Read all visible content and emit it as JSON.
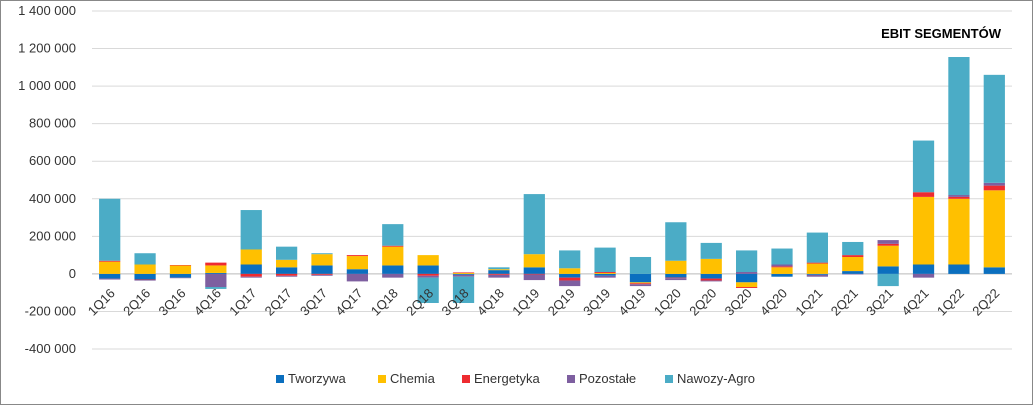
{
  "chart_data": {
    "type": "bar",
    "stacked": true,
    "title": "EBIT SEGMENTÓW",
    "xlabel": "",
    "ylabel": "",
    "ylim": [
      -400000,
      1400000
    ],
    "yticks": [
      -400000,
      -200000,
      0,
      200000,
      400000,
      600000,
      800000,
      1000000,
      1200000,
      1400000
    ],
    "ytick_labels": [
      "-400 000",
      "-200 000",
      "0",
      "200 000",
      "400 000",
      "600 000",
      "800 000",
      "1 000 000",
      "1 200 000",
      "1 400 000"
    ],
    "grid": true,
    "legend_position": "bottom",
    "categories": [
      "1Q16",
      "2Q16",
      "3Q16",
      "4Q16",
      "1Q17",
      "2Q17",
      "3Q17",
      "4Q17",
      "1Q18",
      "2Q18",
      "3Q18",
      "4Q18",
      "1Q19",
      "2Q19",
      "3Q19",
      "4Q19",
      "1Q20",
      "2Q20",
      "3Q20",
      "4Q20",
      "1Q21",
      "2Q21",
      "3Q21",
      "4Q21",
      "1Q22",
      "2Q22"
    ],
    "series": [
      {
        "name": "Tworzywa",
        "color": "#0b6fbf",
        "values": [
          -25000,
          -30000,
          -20000,
          5000,
          50000,
          35000,
          45000,
          25000,
          45000,
          45000,
          -5000,
          20000,
          35000,
          -20000,
          -10000,
          -45000,
          -20000,
          -25000,
          -45000,
          -15000,
          -5000,
          15000,
          40000,
          50000,
          50000,
          35000
        ]
      },
      {
        "name": "Chemia",
        "color": "#ffc000",
        "values": [
          65000,
          50000,
          45000,
          40000,
          80000,
          40000,
          60000,
          70000,
          100000,
          55000,
          5000,
          5000,
          70000,
          30000,
          5000,
          -5000,
          70000,
          80000,
          -25000,
          35000,
          55000,
          75000,
          110000,
          360000,
          350000,
          410000
        ]
      },
      {
        "name": "Energetyka",
        "color": "#ee2b30",
        "values": [
          5000,
          -3000,
          2000,
          15000,
          -15000,
          -10000,
          -5000,
          5000,
          5000,
          -10000,
          3000,
          -5000,
          -3000,
          -15000,
          5000,
          -5000,
          -3000,
          -10000,
          -5000,
          5000,
          5000,
          10000,
          10000,
          25000,
          10000,
          25000
        ]
      },
      {
        "name": "Pozostałe",
        "color": "#7e5fa0",
        "values": [
          -5000,
          -3000,
          -3000,
          -70000,
          -5000,
          -5000,
          -5000,
          -40000,
          -20000,
          -10000,
          -10000,
          -15000,
          -30000,
          -30000,
          -10000,
          -10000,
          -10000,
          -5000,
          10000,
          10000,
          -10000,
          -3000,
          20000,
          -20000,
          10000,
          15000
        ]
      },
      {
        "name": "Nawozy-Agro",
        "color": "#4bacc6",
        "values": [
          330000,
          60000,
          0,
          -10000,
          210000,
          70000,
          5000,
          0,
          115000,
          -135000,
          -140000,
          10000,
          320000,
          95000,
          130000,
          90000,
          205000,
          85000,
          115000,
          85000,
          160000,
          70000,
          -65000,
          275000,
          735000,
          575000
        ]
      }
    ]
  }
}
